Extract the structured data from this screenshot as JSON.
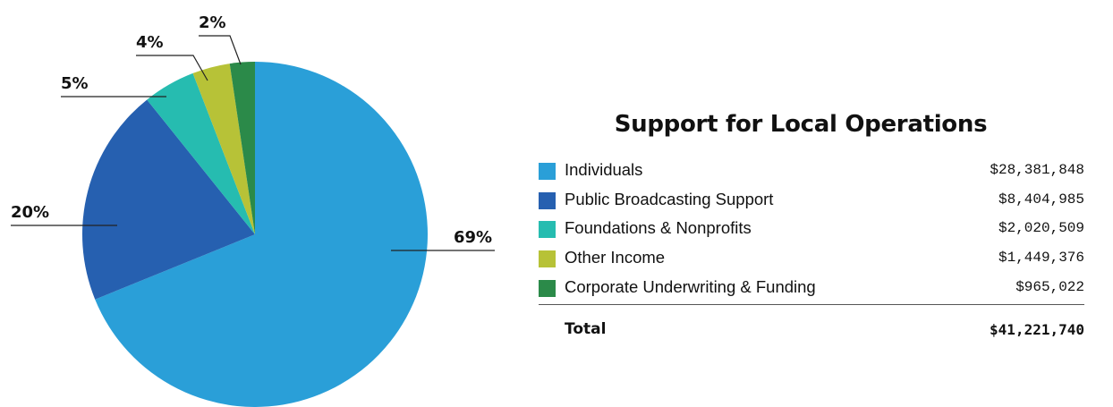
{
  "chart_data": {
    "type": "pie",
    "title": "Support for Local Operations",
    "slices": [
      {
        "label": "Individuals",
        "value": 28381848,
        "value_text": "$28,381,848",
        "percent_label": "69%",
        "color": "#2a9fd8"
      },
      {
        "label": "Public Broadcasting Support",
        "value": 8404985,
        "value_text": "$8,404,985",
        "percent_label": "20%",
        "color": "#2660b0"
      },
      {
        "label": "Foundations & Nonprofits",
        "value": 2020509,
        "value_text": "$2,020,509",
        "percent_label": "5%",
        "color": "#26bcb0"
      },
      {
        "label": "Other Income",
        "value": 1449376,
        "value_text": "$1,449,376",
        "percent_label": "4%",
        "color": "#b7c237"
      },
      {
        "label": "Corporate Underwriting & Funding",
        "value": 965022,
        "value_text": "$965,022",
        "percent_label": "2%",
        "color": "#2b8a49"
      }
    ],
    "total_label": "Total",
    "total_value": "$41,221,740"
  }
}
